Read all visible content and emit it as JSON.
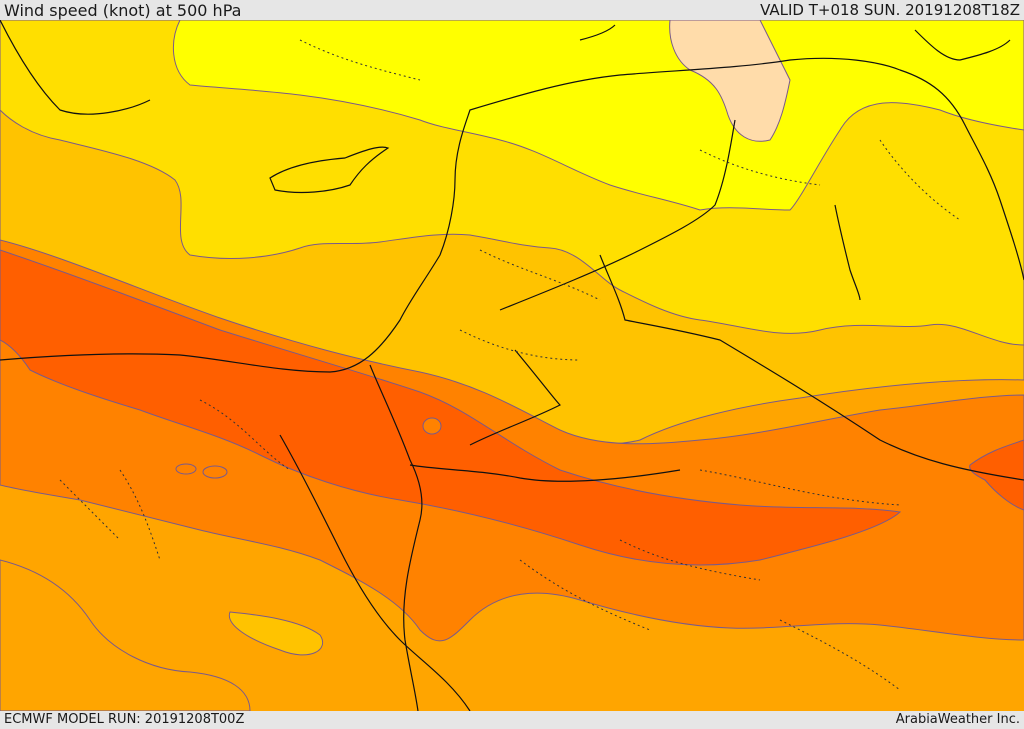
{
  "header": {
    "title": "Wind speed (knot) at 500 hPa",
    "valid": "VALID T+018 SUN. 20191208T18Z"
  },
  "footer": {
    "model_run": "ECMWF MODEL RUN: 20191208T00Z",
    "credit": "ArabiaWeather Inc."
  },
  "palette": {
    "band_1": "#ffffff",
    "band_2": "#ffff00",
    "band_3": "#ffdf00",
    "band_4": "#ffc300",
    "band_5": "#ffa500",
    "band_6": "#ff8200",
    "band_7": "#ff5f00",
    "peach_area": "#ffdcaa",
    "contour_line": "#7a5a8a",
    "coast_border": "#111111"
  }
}
